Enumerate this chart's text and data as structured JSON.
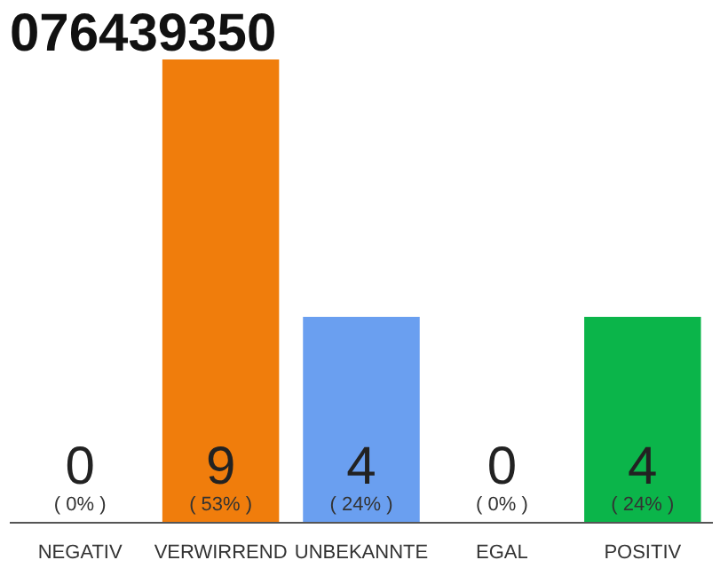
{
  "chart_data": {
    "type": "bar",
    "title": "076439350",
    "categories": [
      "NEGATIV",
      "VERWIRREND",
      "UNBEKANNTE",
      "EGAL",
      "POSITIV"
    ],
    "values": [
      0,
      9,
      4,
      0,
      4
    ],
    "colors": [
      "#eeeeee",
      "#f07d0c",
      "#6a9ff0",
      "#eeeeee",
      "#0bb54a"
    ],
    "data_labels": true,
    "annotations": [
      {
        "text": "( 0% )",
        "x": "NEGATIV",
        "y": 0
      },
      {
        "text": "( 53% )",
        "x": "VERWIRREND",
        "y": 0
      },
      {
        "text": "( 24% )",
        "x": "UNBEKANNTE",
        "y": 0
      },
      {
        "text": "( 0% )",
        "x": "EGAL",
        "y": 0
      },
      {
        "text": "( 24% )",
        "x": "POSITIV",
        "y": 0
      }
    ]
  }
}
